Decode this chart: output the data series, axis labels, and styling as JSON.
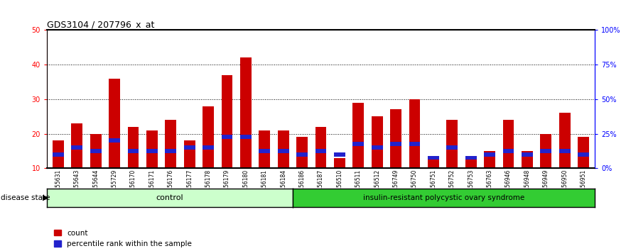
{
  "title": "GDS3104 / 207796_x_at",
  "samples": [
    "GSM155631",
    "GSM155643",
    "GSM155644",
    "GSM155729",
    "GSM156170",
    "GSM156171",
    "GSM156176",
    "GSM156177",
    "GSM156178",
    "GSM156179",
    "GSM156180",
    "GSM156181",
    "GSM156184",
    "GSM156186",
    "GSM156187",
    "GSM156510",
    "GSM156511",
    "GSM156512",
    "GSM156749",
    "GSM156750",
    "GSM156751",
    "GSM156752",
    "GSM156753",
    "GSM156763",
    "GSM156946",
    "GSM156948",
    "GSM156949",
    "GSM156950",
    "GSM156951"
  ],
  "count_values": [
    18,
    23,
    20,
    36,
    22,
    21,
    24,
    18,
    28,
    37,
    42,
    21,
    21,
    19,
    22,
    13,
    29,
    25,
    27,
    30,
    13,
    24,
    13,
    15,
    24,
    15,
    20,
    26,
    19
  ],
  "percentile_values": [
    14.0,
    16.0,
    15.0,
    18.0,
    15.0,
    15.0,
    15.0,
    16.0,
    16.0,
    19.0,
    19.0,
    15.0,
    15.0,
    14.0,
    15.0,
    14.0,
    17.0,
    16.0,
    17.0,
    17.0,
    13.0,
    16.0,
    13.0,
    14.0,
    15.0,
    14.0,
    15.0,
    15.0,
    14.0
  ],
  "control_count": 13,
  "disease_count": 16,
  "control_label": "control",
  "disease_label": "insulin-resistant polycystic ovary syndrome",
  "ylim_left": [
    10,
    50
  ],
  "ylim_right": [
    0,
    100
  ],
  "yticks_left": [
    10,
    20,
    30,
    40,
    50
  ],
  "yticks_right": [
    0,
    25,
    50,
    75,
    100
  ],
  "ytick_labels_right": [
    "0%",
    "25%",
    "50%",
    "75%",
    "100%"
  ],
  "bar_color_count": "#cc0000",
  "bar_color_percentile": "#2222cc",
  "control_bg": "#ccffcc",
  "disease_bg": "#33cc33",
  "bar_bg": "#cccccc",
  "grid_color": "black",
  "legend_count": "count",
  "legend_percentile": "percentile rank within the sample"
}
